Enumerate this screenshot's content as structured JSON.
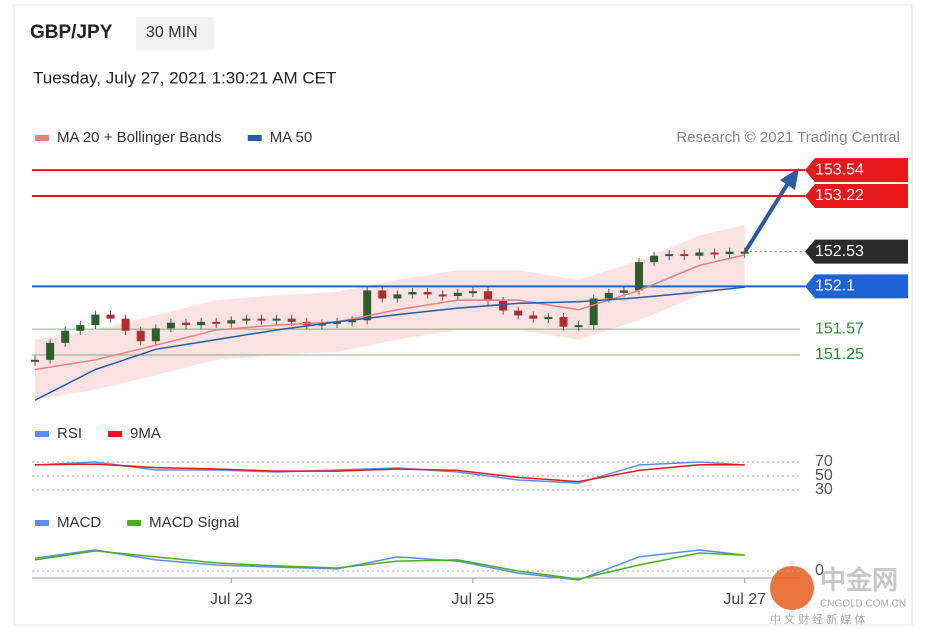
{
  "header": {
    "symbol": "GBP/JPY",
    "interval": "30 MIN",
    "timestamp": "Tuesday, July 27, 2021 1:30:21 AM CET",
    "credit": "Research © 2021 Trading Central"
  },
  "watermark": {
    "brand": "中金网",
    "site": "CNGOLD.COM.CN",
    "tagline": "中 文 财 经 新 媒 体"
  },
  "chart_data": [
    {
      "type": "candlestick",
      "xlim": [
        0,
        50
      ],
      "ylim": [
        150.63,
        153.79
      ],
      "up_color": "#2e5e2e",
      "down_color": "#b52a2a",
      "close": [
        151.19,
        151.4,
        151.55,
        151.62,
        151.75,
        151.7,
        151.55,
        151.42,
        151.58,
        151.65,
        151.62,
        151.66,
        151.64,
        151.68,
        151.7,
        151.68,
        151.7,
        151.66,
        151.62,
        151.64,
        151.66,
        151.68,
        152.05,
        151.95,
        152.0,
        152.03,
        152.0,
        151.98,
        152.02,
        152.04,
        151.92,
        151.8,
        151.74,
        151.7,
        151.72,
        151.6,
        151.62,
        151.95,
        152.02,
        152.05,
        152.4,
        152.48,
        152.5,
        152.48,
        152.52,
        152.5,
        152.53,
        152.53
      ],
      "bollinger": {
        "color": "#fbd5d5",
        "x": [
          0,
          4,
          8,
          12,
          16,
          20,
          24,
          28,
          32,
          36,
          40,
          44,
          47
        ],
        "upper": [
          151.44,
          151.56,
          151.74,
          151.93,
          151.99,
          152.03,
          152.18,
          152.3,
          152.3,
          152.18,
          152.42,
          152.73,
          152.86
        ],
        "lower": [
          150.7,
          150.82,
          151.0,
          151.19,
          151.25,
          151.29,
          151.44,
          151.56,
          151.56,
          151.44,
          151.68,
          151.99,
          152.12
        ]
      },
      "series": [
        {
          "name": "MA 20 + Bollinger Bands",
          "color": "#f08080",
          "x": [
            0,
            4,
            8,
            12,
            16,
            20,
            24,
            28,
            32,
            36,
            40,
            44,
            47
          ],
          "values": [
            151.07,
            151.19,
            151.37,
            151.56,
            151.62,
            151.66,
            151.81,
            151.93,
            151.93,
            151.81,
            152.05,
            152.36,
            152.49
          ]
        },
        {
          "name": "MA 50",
          "color": "#2c5aa0",
          "x": [
            0,
            4,
            8,
            12,
            16,
            20,
            24,
            28,
            32,
            36,
            40,
            44,
            47
          ],
          "values": [
            150.69,
            151.07,
            151.32,
            151.44,
            151.56,
            151.66,
            151.75,
            151.83,
            151.89,
            151.91,
            151.96,
            152.03,
            152.09
          ]
        }
      ],
      "levels": [
        {
          "value": 153.54,
          "color": "#e8171b",
          "style": "badge"
        },
        {
          "value": 153.22,
          "color": "#e8171b",
          "style": "badge"
        },
        {
          "value": 152.53,
          "color": "#2b2b2b",
          "style": "current"
        },
        {
          "value": 152.1,
          "color": "#1e63d6",
          "style": "badge"
        },
        {
          "value": 151.57,
          "color": "#2e8b2e",
          "style": "plain"
        },
        {
          "value": 151.25,
          "color": "#2e8b2e",
          "style": "plain"
        }
      ]
    },
    {
      "type": "line",
      "xlim": [
        0,
        50
      ],
      "ylim": [
        20,
        80
      ],
      "yticks": [
        70,
        50,
        30
      ],
      "series": [
        {
          "name": "RSI",
          "color": "#5b8def",
          "x": [
            0,
            4,
            8,
            12,
            16,
            20,
            24,
            28,
            32,
            36,
            40,
            44,
            47
          ],
          "values": [
            65.7,
            70,
            58.6,
            58.6,
            55.7,
            58.6,
            61.4,
            55.7,
            44.3,
            40,
            65.7,
            70,
            65.7
          ]
        },
        {
          "name": "9MA",
          "color": "#e8171b",
          "x": [
            0,
            4,
            8,
            12,
            16,
            20,
            24,
            28,
            32,
            36,
            40,
            44,
            47
          ],
          "values": [
            66,
            67,
            62,
            60,
            57,
            57,
            60,
            58,
            48,
            42,
            58,
            66,
            66
          ]
        }
      ]
    },
    {
      "type": "line",
      "xlim": [
        0,
        50
      ],
      "ylim": [
        -0.03,
        0.12
      ],
      "yticks": [
        0
      ],
      "xticks": [
        {
          "value": 13,
          "label": "Jul 23"
        },
        {
          "value": 29,
          "label": "Jul 25"
        },
        {
          "value": 47,
          "label": "Jul 27"
        }
      ],
      "series": [
        {
          "name": "MACD",
          "color": "#5b8def",
          "x": [
            0,
            4,
            8,
            12,
            16,
            20,
            24,
            28,
            32,
            36,
            40,
            44,
            47
          ],
          "values": [
            0.043,
            0.07,
            0.037,
            0.02,
            0.013,
            0.007,
            0.047,
            0.033,
            -0.007,
            -0.03,
            0.047,
            0.07,
            0.053
          ]
        },
        {
          "name": "MACD Signal",
          "color": "#4caf1f",
          "x": [
            0,
            4,
            8,
            12,
            16,
            20,
            24,
            28,
            32,
            36,
            40,
            44,
            47
          ],
          "values": [
            0.037,
            0.067,
            0.047,
            0.027,
            0.017,
            0.01,
            0.033,
            0.037,
            0,
            -0.027,
            0.02,
            0.06,
            0.053
          ]
        }
      ]
    }
  ]
}
